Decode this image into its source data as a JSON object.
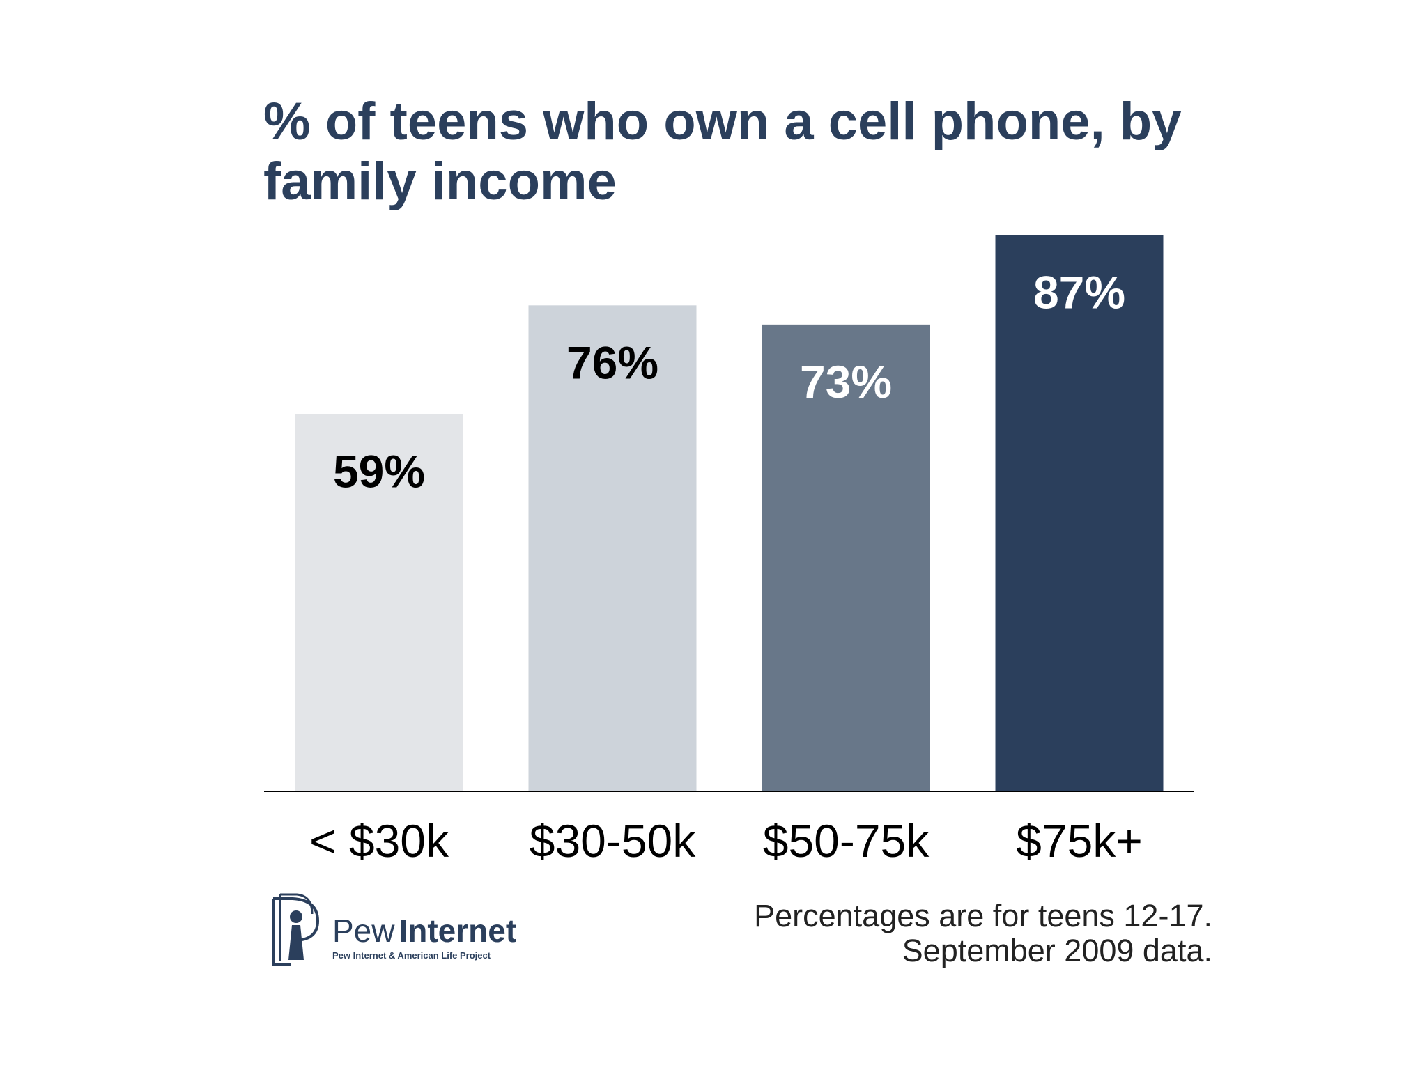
{
  "chart_data": {
    "type": "bar",
    "title": "% of teens who own a cell phone, by family income",
    "categories": [
      "< $30k",
      "$30-50k",
      "$50-75k",
      "$75k+"
    ],
    "values": [
      59,
      76,
      73,
      87
    ],
    "value_labels": [
      "59%",
      "76%",
      "73%",
      "87%"
    ],
    "colors": [
      "#e3e5e8",
      "#cdd3da",
      "#687789",
      "#2b3f5c"
    ],
    "label_colors": [
      "#000000",
      "#000000",
      "#ffffff",
      "#ffffff"
    ],
    "ylim": [
      0,
      100
    ],
    "notes": [
      "Percentages are for teens 12-17.",
      "September 2009 data."
    ]
  },
  "logo": {
    "word1": "Pew",
    "word2": "Internet",
    "tagline": "Pew Internet & American Life Project"
  }
}
